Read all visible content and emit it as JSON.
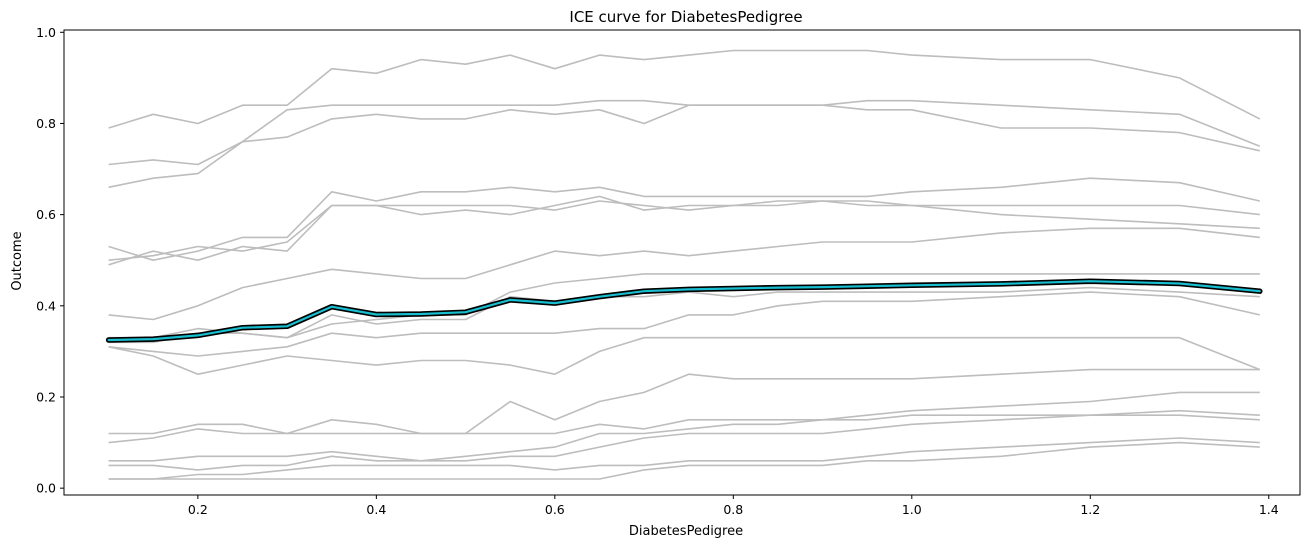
{
  "chart_data": {
    "type": "line",
    "title": "ICE curve for DiabetesPedigree",
    "xlabel": "DiabetesPedigree",
    "ylabel": "Outcome",
    "xlim": [
      0.05,
      1.435
    ],
    "ylim": [
      -0.015,
      1.005
    ],
    "xticks": [
      0.2,
      0.4,
      0.6,
      0.8,
      1.0,
      1.2,
      1.4
    ],
    "xtick_labels": [
      "0.2",
      "0.4",
      "0.6",
      "0.8",
      "1.0",
      "1.2",
      "1.4"
    ],
    "yticks": [
      0.0,
      0.2,
      0.4,
      0.6,
      0.8,
      1.0
    ],
    "ytick_labels": [
      "0.0",
      "0.2",
      "0.4",
      "0.6",
      "0.8",
      "1.0"
    ],
    "grid": false,
    "colors": {
      "ice": "#bdbdbd",
      "mean_outline": "#000000",
      "mean": "#17becf"
    },
    "x": [
      0.1,
      0.15,
      0.2,
      0.25,
      0.3,
      0.35,
      0.4,
      0.45,
      0.5,
      0.55,
      0.6,
      0.65,
      0.7,
      0.75,
      0.8,
      0.85,
      0.9,
      0.95,
      1.0,
      1.1,
      1.2,
      1.3,
      1.39
    ],
    "ice_curves": [
      [
        0.79,
        0.82,
        0.8,
        0.84,
        0.84,
        0.92,
        0.91,
        0.94,
        0.93,
        0.95,
        0.92,
        0.95,
        0.94,
        0.95,
        0.96,
        0.96,
        0.96,
        0.96,
        0.95,
        0.94,
        0.94,
        0.9,
        0.81
      ],
      [
        0.71,
        0.72,
        0.71,
        0.76,
        0.83,
        0.84,
        0.84,
        0.84,
        0.84,
        0.84,
        0.84,
        0.85,
        0.85,
        0.84,
        0.84,
        0.84,
        0.84,
        0.85,
        0.85,
        0.84,
        0.83,
        0.82,
        0.75
      ],
      [
        0.66,
        0.68,
        0.69,
        0.76,
        0.77,
        0.81,
        0.82,
        0.81,
        0.81,
        0.83,
        0.82,
        0.83,
        0.8,
        0.84,
        0.84,
        0.84,
        0.84,
        0.83,
        0.83,
        0.79,
        0.79,
        0.78,
        0.74
      ],
      [
        0.53,
        0.5,
        0.52,
        0.55,
        0.55,
        0.65,
        0.63,
        0.65,
        0.65,
        0.66,
        0.65,
        0.66,
        0.64,
        0.64,
        0.64,
        0.64,
        0.64,
        0.64,
        0.65,
        0.66,
        0.68,
        0.67,
        0.63
      ],
      [
        0.5,
        0.51,
        0.53,
        0.52,
        0.54,
        0.62,
        0.62,
        0.62,
        0.62,
        0.62,
        0.61,
        0.63,
        0.62,
        0.61,
        0.62,
        0.62,
        0.63,
        0.62,
        0.62,
        0.62,
        0.62,
        0.62,
        0.6
      ],
      [
        0.49,
        0.52,
        0.5,
        0.53,
        0.52,
        0.62,
        0.62,
        0.6,
        0.61,
        0.6,
        0.62,
        0.64,
        0.61,
        0.62,
        0.62,
        0.63,
        0.63,
        0.63,
        0.62,
        0.6,
        0.59,
        0.58,
        0.57
      ],
      [
        0.38,
        0.37,
        0.4,
        0.44,
        0.46,
        0.48,
        0.47,
        0.46,
        0.46,
        0.49,
        0.52,
        0.51,
        0.52,
        0.51,
        0.52,
        0.53,
        0.54,
        0.54,
        0.54,
        0.56,
        0.57,
        0.57,
        0.55
      ],
      [
        0.33,
        0.33,
        0.35,
        0.34,
        0.33,
        0.36,
        0.37,
        0.38,
        0.38,
        0.43,
        0.45,
        0.46,
        0.47,
        0.47,
        0.47,
        0.47,
        0.47,
        0.47,
        0.47,
        0.47,
        0.47,
        0.47,
        0.47
      ],
      [
        0.32,
        0.32,
        0.34,
        0.34,
        0.33,
        0.38,
        0.36,
        0.37,
        0.37,
        0.42,
        0.41,
        0.42,
        0.42,
        0.43,
        0.42,
        0.43,
        0.43,
        0.43,
        0.43,
        0.43,
        0.44,
        0.43,
        0.42
      ],
      [
        0.31,
        0.3,
        0.29,
        0.3,
        0.31,
        0.34,
        0.33,
        0.34,
        0.34,
        0.34,
        0.34,
        0.35,
        0.35,
        0.38,
        0.38,
        0.4,
        0.41,
        0.41,
        0.41,
        0.42,
        0.43,
        0.42,
        0.38
      ],
      [
        0.31,
        0.29,
        0.25,
        0.27,
        0.29,
        0.28,
        0.27,
        0.28,
        0.28,
        0.27,
        0.25,
        0.3,
        0.33,
        0.33,
        0.33,
        0.33,
        0.33,
        0.33,
        0.33,
        0.33,
        0.33,
        0.33,
        0.26
      ],
      [
        0.12,
        0.12,
        0.14,
        0.14,
        0.12,
        0.15,
        0.14,
        0.12,
        0.12,
        0.19,
        0.15,
        0.19,
        0.21,
        0.25,
        0.24,
        0.24,
        0.24,
        0.24,
        0.24,
        0.25,
        0.26,
        0.26,
        0.26
      ],
      [
        0.1,
        0.11,
        0.13,
        0.12,
        0.12,
        0.12,
        0.12,
        0.12,
        0.12,
        0.12,
        0.12,
        0.14,
        0.13,
        0.15,
        0.15,
        0.15,
        0.15,
        0.16,
        0.17,
        0.18,
        0.19,
        0.21,
        0.21
      ],
      [
        0.06,
        0.06,
        0.07,
        0.07,
        0.07,
        0.08,
        0.07,
        0.06,
        0.07,
        0.08,
        0.09,
        0.12,
        0.12,
        0.13,
        0.14,
        0.14,
        0.15,
        0.15,
        0.16,
        0.16,
        0.16,
        0.17,
        0.16
      ],
      [
        0.05,
        0.05,
        0.04,
        0.05,
        0.05,
        0.07,
        0.06,
        0.06,
        0.06,
        0.07,
        0.07,
        0.09,
        0.11,
        0.12,
        0.12,
        0.12,
        0.12,
        0.13,
        0.14,
        0.15,
        0.16,
        0.16,
        0.15
      ],
      [
        0.02,
        0.02,
        0.03,
        0.03,
        0.04,
        0.05,
        0.05,
        0.05,
        0.05,
        0.05,
        0.04,
        0.05,
        0.05,
        0.06,
        0.06,
        0.06,
        0.06,
        0.07,
        0.08,
        0.09,
        0.1,
        0.11,
        0.1
      ],
      [
        0.02,
        0.02,
        0.02,
        0.02,
        0.02,
        0.02,
        0.02,
        0.02,
        0.02,
        0.02,
        0.02,
        0.02,
        0.04,
        0.05,
        0.05,
        0.05,
        0.05,
        0.06,
        0.06,
        0.07,
        0.09,
        0.1,
        0.09
      ]
    ],
    "mean_curve": [
      0.325,
      0.327,
      0.335,
      0.352,
      0.355,
      0.398,
      0.381,
      0.382,
      0.386,
      0.413,
      0.406,
      0.42,
      0.432,
      0.436,
      0.438,
      0.44,
      0.441,
      0.443,
      0.445,
      0.448,
      0.454,
      0.449,
      0.432
    ]
  }
}
